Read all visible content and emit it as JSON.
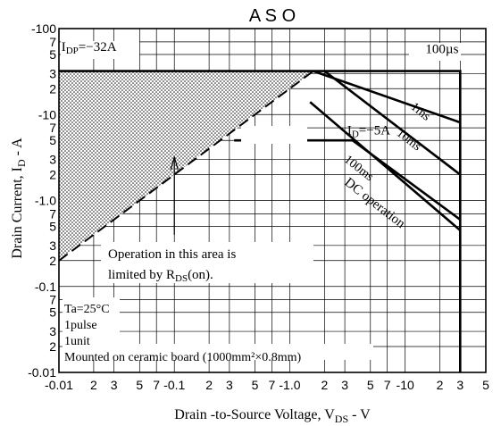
{
  "chart_data": {
    "type": "line",
    "title": "A S O",
    "xlabel": "Drain -to-Source Voltage, V",
    "xlabel_sub": "DS",
    "xlabel_tail": " - V",
    "ylabel": "Drain Current, I",
    "ylabel_sub": "D",
    "ylabel_tail": " - A",
    "x_scale": "log",
    "y_scale": "log",
    "xlim": [
      0.01,
      50
    ],
    "ylim": [
      0.01,
      100
    ],
    "grid": true,
    "x_ticks": [
      {
        "v": 0.01,
        "t": "-0.01"
      },
      {
        "v": 0.02,
        "t": "2"
      },
      {
        "v": 0.03,
        "t": "3"
      },
      {
        "v": 0.05,
        "t": "5"
      },
      {
        "v": 0.07,
        "t": "7"
      },
      {
        "v": 0.1,
        "t": "-0.1"
      },
      {
        "v": 0.2,
        "t": "2"
      },
      {
        "v": 0.3,
        "t": "3"
      },
      {
        "v": 0.5,
        "t": "5"
      },
      {
        "v": 0.7,
        "t": "7"
      },
      {
        "v": 1,
        "t": "-1.0"
      },
      {
        "v": 2,
        "t": "2"
      },
      {
        "v": 3,
        "t": "3"
      },
      {
        "v": 5,
        "t": "5"
      },
      {
        "v": 7,
        "t": "7"
      },
      {
        "v": 10,
        "t": "-10"
      },
      {
        "v": 20,
        "t": "2"
      },
      {
        "v": 30,
        "t": "3"
      },
      {
        "v": 50,
        "t": "5"
      }
    ],
    "y_ticks": [
      {
        "v": 100,
        "t": "-100"
      },
      {
        "v": 70,
        "t": "7"
      },
      {
        "v": 50,
        "t": "5"
      },
      {
        "v": 30,
        "t": "3"
      },
      {
        "v": 20,
        "t": "2"
      },
      {
        "v": 10,
        "t": "-10"
      },
      {
        "v": 7,
        "t": "7"
      },
      {
        "v": 5,
        "t": "5"
      },
      {
        "v": 3,
        "t": "3"
      },
      {
        "v": 2,
        "t": "2"
      },
      {
        "v": 1,
        "t": "-1.0"
      },
      {
        "v": 0.7,
        "t": "7"
      },
      {
        "v": 0.5,
        "t": "5"
      },
      {
        "v": 0.3,
        "t": "3"
      },
      {
        "v": 0.2,
        "t": "2"
      },
      {
        "v": 0.1,
        "t": "-0.1"
      },
      {
        "v": 0.07,
        "t": "7"
      },
      {
        "v": 0.05,
        "t": "5"
      },
      {
        "v": 0.03,
        "t": "3"
      },
      {
        "v": 0.02,
        "t": "2"
      },
      {
        "v": 0.01,
        "t": "-0.01"
      }
    ],
    "series": [
      {
        "name": "100µs",
        "style": "solid",
        "points": [
          [
            0.01,
            32
          ],
          [
            30,
            32
          ],
          [
            30,
            0.01
          ]
        ]
      },
      {
        "name": "1ms",
        "style": "solid",
        "points": [
          [
            1.6,
            32
          ],
          [
            30,
            8.1
          ]
        ]
      },
      {
        "name": "10ms",
        "style": "solid",
        "points": [
          [
            2,
            32
          ],
          [
            30,
            2
          ]
        ]
      },
      {
        "name": "100ms",
        "style": "solid",
        "points": [
          [
            1.5,
            14
          ],
          [
            30,
            0.45
          ]
        ]
      },
      {
        "name": "DC operation",
        "style": "solid",
        "points": [
          [
            0.33,
            5
          ],
          [
            3.5,
            5
          ],
          [
            30,
            0.6
          ]
        ]
      },
      {
        "name": "R_DS(on) limit",
        "style": "dashed",
        "points": [
          [
            0.01,
            0.2
          ],
          [
            1.6,
            32
          ]
        ]
      }
    ],
    "shaded_region": {
      "points": [
        [
          0.01,
          0.2
        ],
        [
          1.6,
          32
        ],
        [
          0.01,
          32
        ]
      ]
    },
    "labels": {
      "idp": {
        "main": "I",
        "sub": "DP",
        "rest": "=−32A",
        "x": 0.0105,
        "y": 55
      },
      "id": {
        "main": "I",
        "sub": "D",
        "rest": "=−5A",
        "x": 3.15,
        "y": 5.9
      },
      "t100us": {
        "text": "100µs",
        "x": 15,
        "y": 52
      },
      "t1ms": {
        "text": "1ms",
        "x": 13,
        "y": 10,
        "rot": 38
      },
      "t10ms": {
        "text": "10ms",
        "x": 10.3,
        "y": 4.7,
        "rot": 38
      },
      "t100ms": {
        "text": "100ms",
        "x": 3.8,
        "y": 2.2,
        "rot": 38
      },
      "tdc": {
        "text": "DC operation",
        "x": 5.2,
        "y": 0.86,
        "rot": 38
      }
    },
    "annotation": {
      "line1": "Operation in this area is",
      "line2_main": "limited by R",
      "line2_sub": "DS",
      "line2_rest": "(on).",
      "arrow_x": 0.1,
      "arrow_tip_y": 3.2,
      "arrow_base_y": 0.4
    },
    "conditions": [
      "Ta=25°C",
      "1pulse",
      "1unit",
      "Mounted on ceramic board (1000mm²×0.8mm)"
    ]
  }
}
